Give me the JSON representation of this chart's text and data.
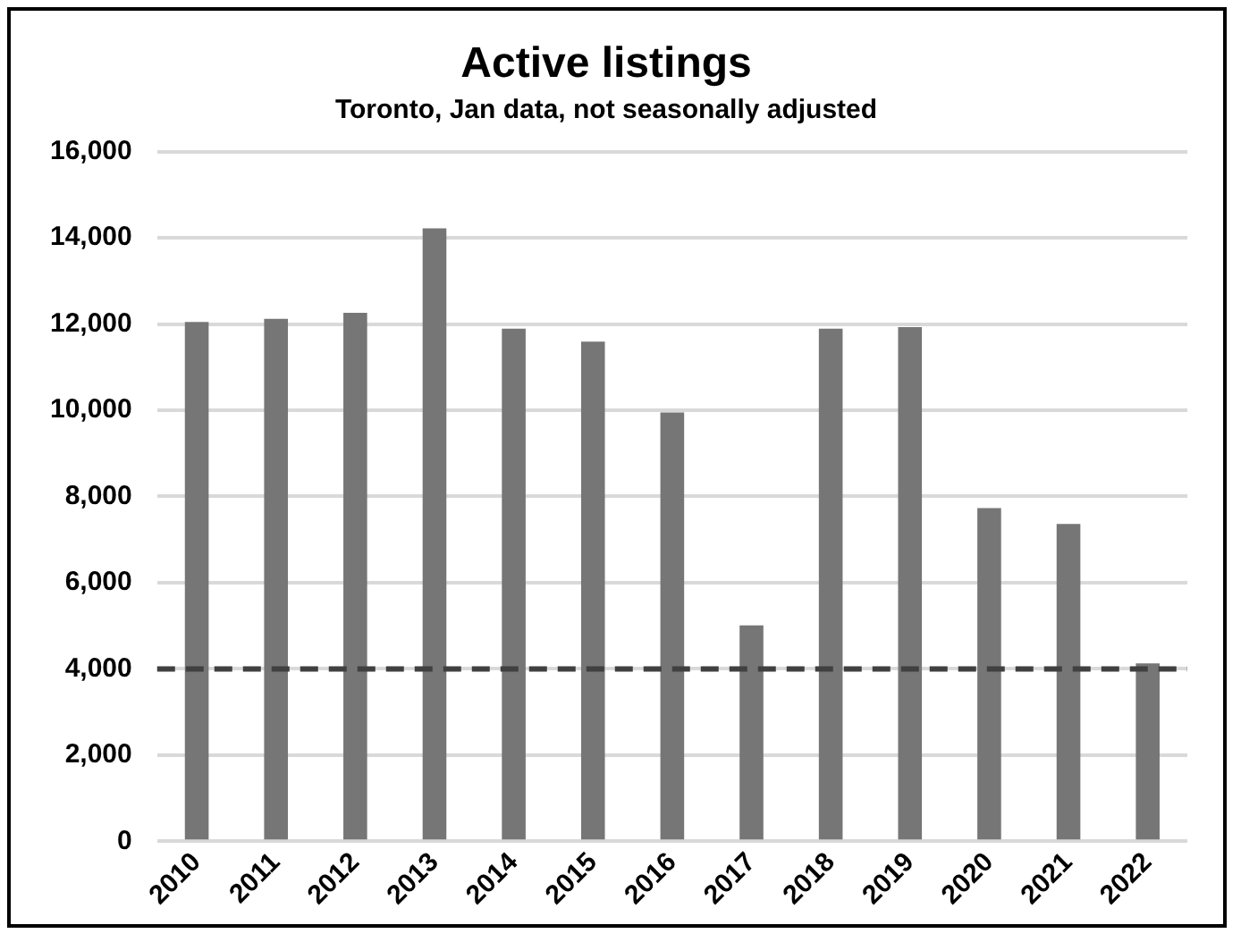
{
  "chart_data": {
    "type": "bar",
    "title": "Active listings",
    "subtitle": "Toronto, Jan data, not seasonally adjusted",
    "categories": [
      "2010",
      "2011",
      "2012",
      "2013",
      "2014",
      "2015",
      "2016",
      "2017",
      "2018",
      "2019",
      "2020",
      "2021",
      "2022"
    ],
    "values": [
      12050,
      12120,
      12260,
      14220,
      11890,
      11590,
      9950,
      5010,
      11890,
      11930,
      7730,
      7360,
      4130
    ],
    "color": "#767676",
    "ylim": [
      0,
      16000
    ],
    "yticks": [
      {
        "value": 0,
        "label": "0"
      },
      {
        "value": 2000,
        "label": "2,000"
      },
      {
        "value": 4000,
        "label": "4,000"
      },
      {
        "value": 6000,
        "label": "6,000"
      },
      {
        "value": 8000,
        "label": "8,000"
      },
      {
        "value": 10000,
        "label": "10,000"
      },
      {
        "value": 12000,
        "label": "12,000"
      },
      {
        "value": 14000,
        "label": "14,000"
      },
      {
        "value": 16000,
        "label": "16,000"
      }
    ],
    "grid": "y",
    "ref_lines": [
      {
        "axis": "y",
        "value": 4000,
        "color": "#404040",
        "line_style": "dashed"
      }
    ]
  }
}
